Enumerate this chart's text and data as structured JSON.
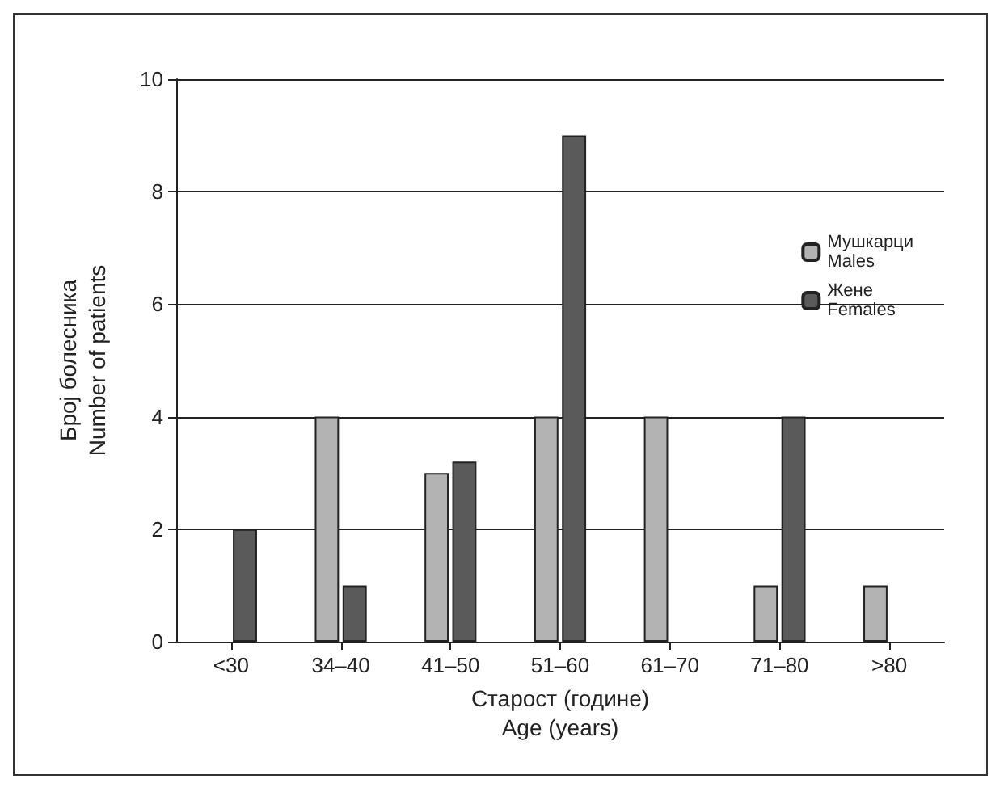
{
  "chart_data": {
    "type": "bar",
    "xlabel": "Старост (године)\nAge (years)",
    "ylabel": "Број болесника\nNumber of patients",
    "categories": [
      "<30",
      "34–40",
      "41–50",
      "51–60",
      "61–70",
      "71–80",
      ">80"
    ],
    "series": [
      {
        "name": "Мушкарци\nMales",
        "color": "#b3b3b3",
        "values": [
          null,
          4,
          3,
          4,
          4,
          1,
          1
        ]
      },
      {
        "name": "Жене\nFemales",
        "color": "#5a5a5a",
        "values": [
          2,
          1,
          3.2,
          9,
          null,
          4,
          null
        ]
      }
    ],
    "ylim": [
      0,
      10
    ],
    "yticks": [
      0,
      2,
      4,
      6,
      8,
      10
    ],
    "grid": "y",
    "legend": "top right"
  }
}
